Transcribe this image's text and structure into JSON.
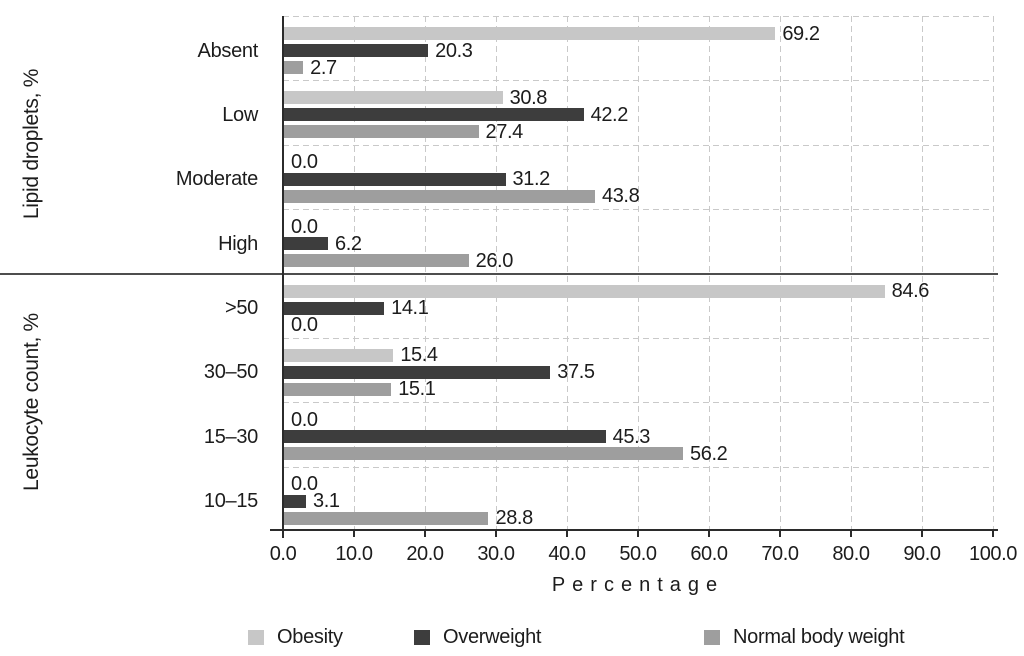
{
  "chart_data": {
    "type": "bar",
    "orientation": "horizontal",
    "title": "",
    "xlabel": "Percentage",
    "xlim": [
      0,
      100
    ],
    "x_ticks": [
      0,
      10,
      20,
      30,
      40,
      50,
      60,
      70,
      80,
      90,
      100
    ],
    "tick_decimals": 1,
    "grid": "dashed",
    "legend_position": "bottom",
    "value_labels_shown": true,
    "panels": [
      {
        "label": "Lipid droplets, %",
        "categories": [
          "Absent",
          "Low",
          "Moderate",
          "High"
        ]
      },
      {
        "label": "Leukocyte count, %",
        "categories": [
          ">50",
          "30–50",
          "15–30",
          "10–15"
        ]
      }
    ],
    "series": [
      {
        "name": "Obesity",
        "color": "#c7c7c7",
        "values": [
          69.2,
          30.8,
          0.0,
          0.0,
          84.6,
          15.4,
          0.0,
          0.0
        ]
      },
      {
        "name": "Overweight",
        "color": "#3d3d3d",
        "values": [
          20.3,
          42.2,
          31.2,
          6.2,
          14.1,
          37.5,
          45.3,
          3.1
        ]
      },
      {
        "name": "Normal body weight",
        "color": "#9e9e9e",
        "values": [
          2.7,
          27.4,
          43.8,
          26.0,
          0.0,
          15.1,
          56.2,
          28.8
        ]
      }
    ],
    "colors": {
      "axis": "#2b2b2b",
      "grid": "#c9c9c9",
      "separator": "#4d4d4d",
      "text": "#1c1c1c"
    }
  }
}
